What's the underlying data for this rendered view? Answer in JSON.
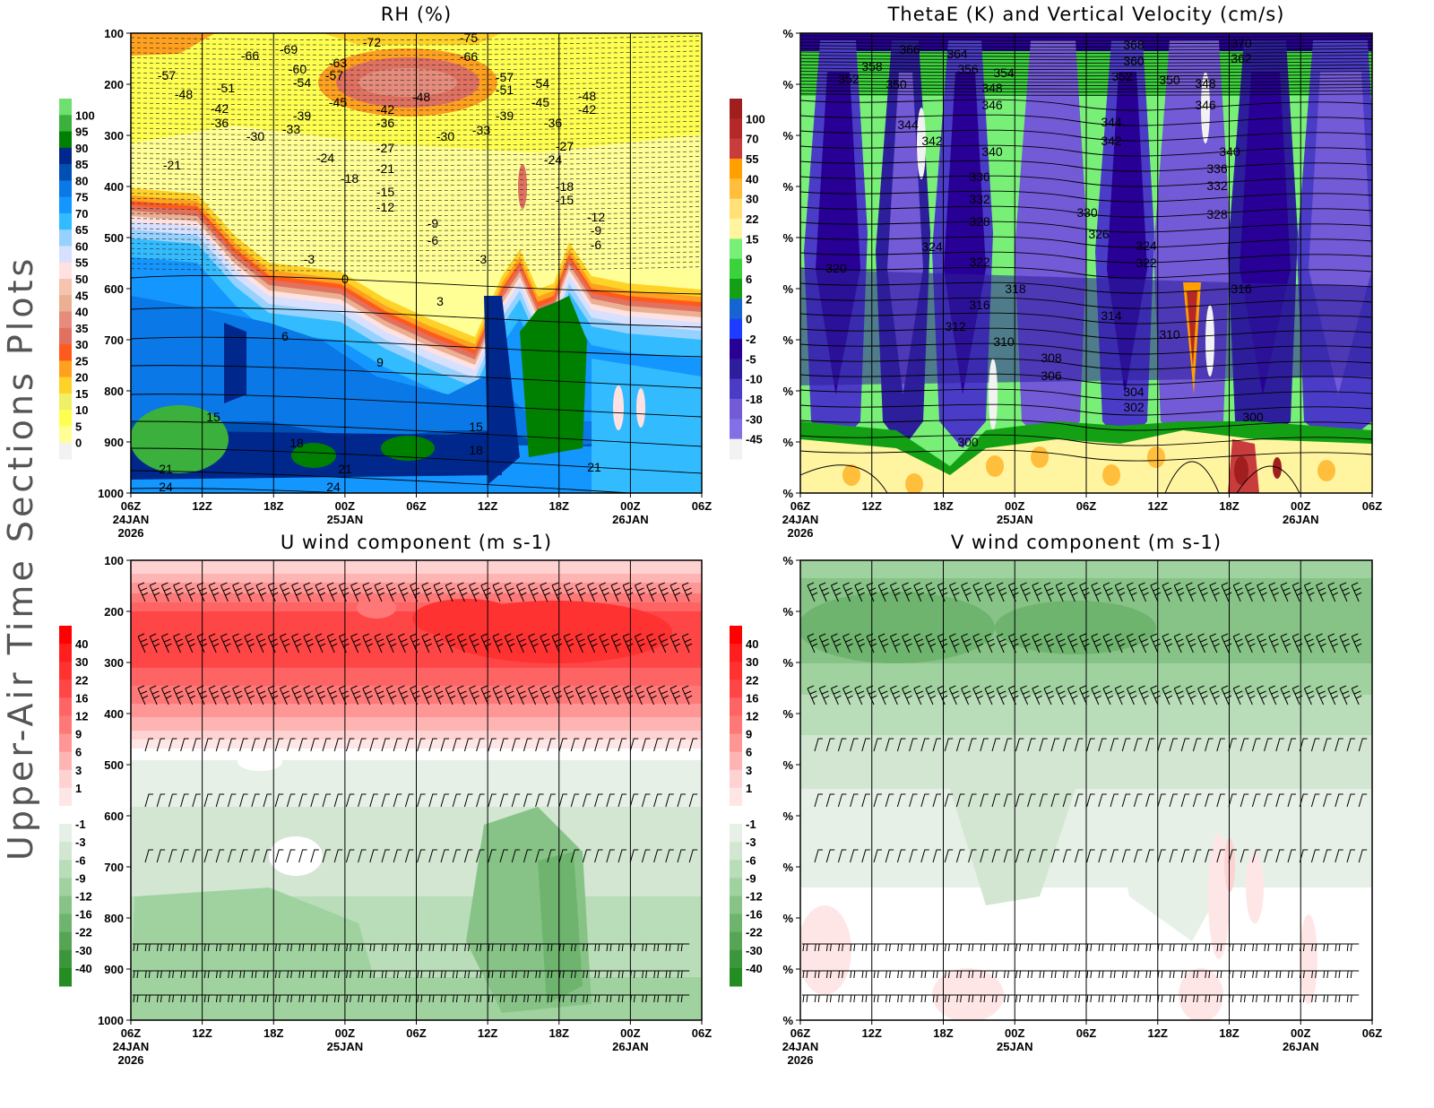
{
  "page": {
    "side_title": "Upper-Air Time Sections Plots"
  },
  "chart_data": [
    {
      "type": "heatmap",
      "title": "RH (%)",
      "x_ticks": [
        "06Z",
        "12Z",
        "18Z",
        "00Z",
        "06Z",
        "12Z",
        "18Z",
        "00Z",
        "06Z"
      ],
      "x_date_labels": {
        "0": "24JAN",
        "3": "25JAN",
        "7": "26JAN"
      },
      "x_year_label": "2026",
      "y_ticks": [
        "100",
        "200",
        "300",
        "400",
        "500",
        "600",
        "700",
        "800",
        "900",
        "1000"
      ],
      "y_reversed": true,
      "colorbar": {
        "labels": [
          "100",
          "95",
          "90",
          "85",
          "80",
          "75",
          "70",
          "65",
          "60",
          "55",
          "50",
          "45",
          "40",
          "35",
          "30",
          "25",
          "20",
          "15",
          "10",
          "5",
          "0"
        ],
        "colors": [
          "#6fe06f",
          "#3cb03c",
          "#008000",
          "#00288c",
          "#0050b4",
          "#0a78e6",
          "#1496ff",
          "#32bcff",
          "#96d2ff",
          "#d7e0ff",
          "#ffe1e1",
          "#f5c3af",
          "#ebaf91",
          "#e68c7d",
          "#e07160",
          "#ff5a1e",
          "#ffa01e",
          "#ffd228",
          "#f0f064",
          "#ffff50",
          "#ffff96",
          "#f2f2f2"
        ]
      },
      "contour_labels": [
        "-75",
        "-72",
        "-69",
        "-66",
        "-66",
        "-63",
        "-60",
        "-57",
        "-57",
        "-57",
        "-54",
        "-54",
        "-51",
        "-51",
        "-48",
        "-48",
        "-48",
        "-45",
        "-45",
        "-42",
        "-42",
        "-42",
        "-39",
        "-39",
        "-36",
        "-36",
        "-36",
        "-33",
        "-33",
        "-30",
        "-30",
        "-27",
        "-27",
        "-24",
        "-24",
        "-21",
        "-21",
        "-18",
        "-18",
        "-15",
        "-15",
        "-12",
        "-12",
        "-9",
        "-9",
        "-6",
        "-6",
        "-3",
        "-3",
        "0",
        "3",
        "6",
        "9",
        "15",
        "15",
        "18",
        "18",
        "21",
        "21",
        "21",
        "24",
        "24"
      ]
    },
    {
      "type": "heatmap",
      "title": "ThetaE (K) and Vertical Velocity (cm/s)",
      "x_ticks": [
        "06Z",
        "12Z",
        "18Z",
        "00Z",
        "06Z",
        "12Z",
        "18Z",
        "00Z",
        "06Z"
      ],
      "x_date_labels": {
        "0": "24JAN",
        "3": "25JAN",
        "7": "26JAN"
      },
      "x_year_label": "2026",
      "y_ticks": [
        "%",
        "%",
        "%",
        "%",
        "%",
        "%",
        "%",
        "%",
        "%",
        "%"
      ],
      "colorbar": {
        "labels": [
          "100",
          "70",
          "55",
          "40",
          "30",
          "22",
          "15",
          "9",
          "6",
          "2",
          "0",
          "-2",
          "-5",
          "-10",
          "-18",
          "-30",
          "-45"
        ],
        "colors": [
          "#a01e1e",
          "#b42828",
          "#c83c3c",
          "#ffa000",
          "#ffbe3c",
          "#ffe178",
          "#fff5a0",
          "#78f078",
          "#3cd23c",
          "#14a014",
          "#1464d2",
          "#1e3cff",
          "#280096",
          "#2d1e9b",
          "#4b3cc8",
          "#735ad7",
          "#8270e6",
          "#f2f2f2"
        ]
      },
      "contour_labels": [
        "370",
        "368",
        "366",
        "364",
        "362",
        "360",
        "358",
        "356",
        "354",
        "352",
        "352",
        "350",
        "350",
        "348",
        "348",
        "346",
        "346",
        "344",
        "344",
        "342",
        "342",
        "340",
        "340",
        "336",
        "336",
        "332",
        "332",
        "330",
        "328",
        "328",
        "326",
        "324",
        "324",
        "322",
        "322",
        "320",
        "318",
        "316",
        "316",
        "314",
        "312",
        "310",
        "310",
        "308",
        "306",
        "304",
        "302",
        "300",
        "300"
      ]
    },
    {
      "type": "heatmap",
      "title": "U wind component (m s-1)",
      "x_ticks": [
        "06Z",
        "12Z",
        "18Z",
        "00Z",
        "06Z",
        "12Z",
        "18Z",
        "00Z",
        "06Z"
      ],
      "x_date_labels": {
        "0": "24JAN",
        "3": "25JAN",
        "7": "26JAN"
      },
      "x_year_label": "2026",
      "y_ticks": [
        "100",
        "200",
        "300",
        "400",
        "500",
        "600",
        "700",
        "800",
        "900",
        "1000"
      ],
      "y_reversed": true,
      "colorbar": {
        "labels": [
          "40",
          "30",
          "22",
          "16",
          "12",
          "9",
          "6",
          "3",
          "1",
          "-1",
          "-3",
          "-6",
          "-9",
          "-12",
          "-16",
          "-22",
          "-30",
          "-40"
        ],
        "colors": [
          "#ff0000",
          "#ff1e1e",
          "#ff3232",
          "#ff4646",
          "#ff6464",
          "#ff7878",
          "#ff9696",
          "#ffb4b4",
          "#ffd2d2",
          "#ffe6e6",
          "#ffffff",
          "#e6f0e6",
          "#d2e6d2",
          "#b9dcb9",
          "#a0d2a0",
          "#87c387",
          "#6eb46e",
          "#55a555",
          "#3c963c",
          "#238c23"
        ]
      },
      "wind_barbs": true
    },
    {
      "type": "heatmap",
      "title": "V wind component (m s-1)",
      "x_ticks": [
        "06Z",
        "12Z",
        "18Z",
        "00Z",
        "06Z",
        "12Z",
        "18Z",
        "00Z",
        "06Z"
      ],
      "x_date_labels": {
        "0": "24JAN",
        "3": "25JAN",
        "7": "26JAN"
      },
      "x_year_label": "2026",
      "y_ticks": [
        "%",
        "%",
        "%",
        "%",
        "%",
        "%",
        "%",
        "%",
        "%",
        "%"
      ],
      "colorbar": {
        "labels": [
          "40",
          "30",
          "22",
          "16",
          "12",
          "9",
          "6",
          "3",
          "1",
          "-1",
          "-3",
          "-6",
          "-9",
          "-12",
          "-16",
          "-22",
          "-30",
          "-40"
        ],
        "colors": [
          "#ff0000",
          "#ff1e1e",
          "#ff3232",
          "#ff4646",
          "#ff6464",
          "#ff7878",
          "#ff9696",
          "#ffb4b4",
          "#ffd2d2",
          "#ffe6e6",
          "#ffffff",
          "#e6f0e6",
          "#d2e6d2",
          "#b9dcb9",
          "#a0d2a0",
          "#87c387",
          "#6eb46e",
          "#55a555",
          "#3c963c",
          "#238c23"
        ]
      },
      "wind_barbs": true
    }
  ]
}
